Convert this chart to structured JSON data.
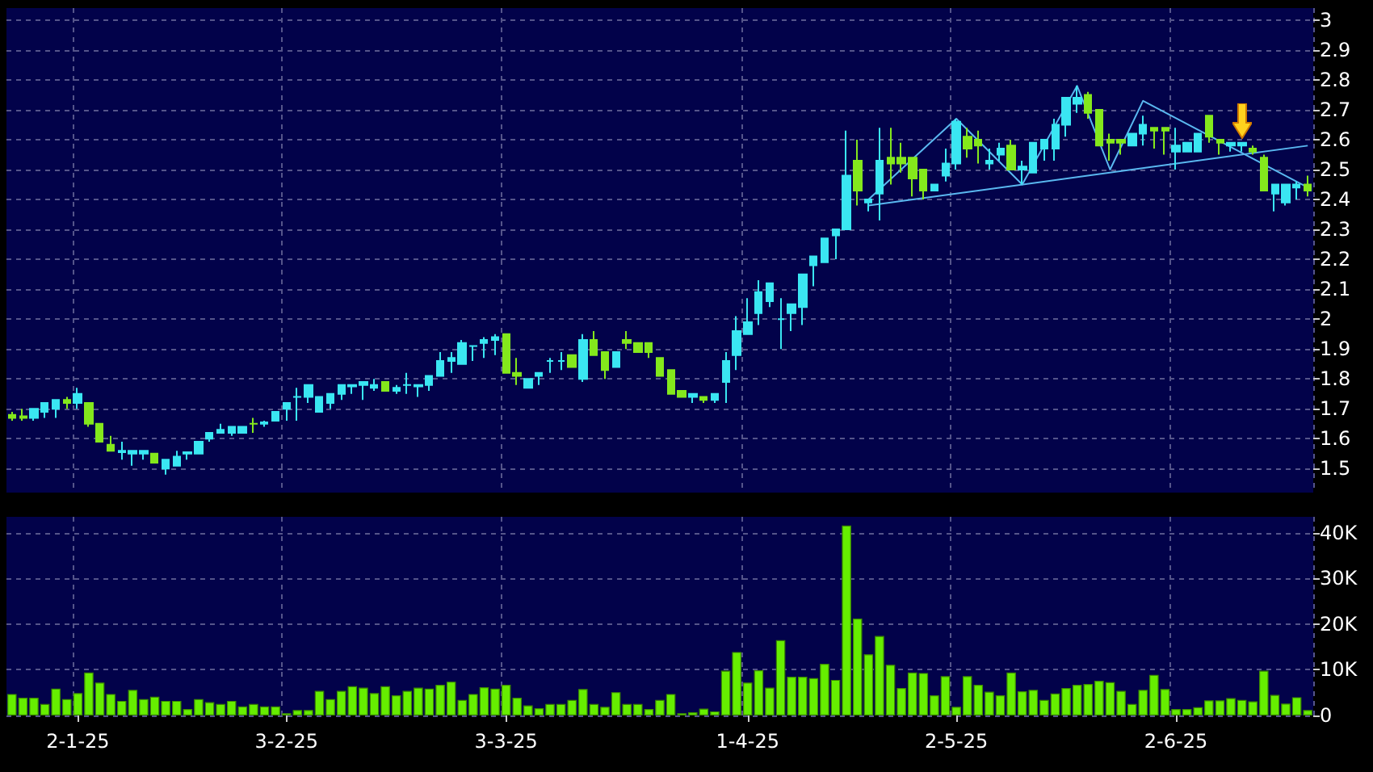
{
  "chart_data": [
    {
      "type": "candlestick",
      "tick_labels": "y",
      "grid": true,
      "categories": [
        null,
        null,
        null,
        null,
        null,
        null,
        null,
        null,
        null,
        null,
        null,
        null,
        null,
        null,
        null,
        null,
        null,
        null,
        null,
        null,
        null,
        null,
        null,
        null,
        null,
        null,
        null,
        null,
        null,
        null,
        null,
        null,
        null,
        null,
        null,
        null,
        null,
        null,
        null,
        null,
        null,
        null,
        null,
        null,
        null,
        null,
        null,
        null,
        null,
        null,
        null,
        null,
        null,
        null,
        null,
        null,
        null,
        null,
        null,
        null,
        null,
        null,
        null,
        null,
        null,
        null,
        null,
        null,
        null,
        null,
        null,
        null,
        null,
        null,
        null,
        null,
        null,
        null,
        null,
        null,
        null,
        null,
        null,
        null,
        null,
        null,
        null,
        null,
        null,
        null,
        null,
        null,
        null,
        null,
        null,
        null,
        null,
        null,
        null,
        null,
        null,
        null,
        null,
        null,
        null,
        null,
        null,
        null,
        null,
        null,
        null,
        null,
        null,
        null,
        null,
        null,
        null,
        null,
        null
      ],
      "ohlc": [
        [
          1.68,
          1.69,
          1.66,
          1.67
        ],
        [
          1.675,
          1.7,
          1.66,
          1.67
        ],
        [
          1.67,
          1.7,
          1.66,
          1.7
        ],
        [
          1.69,
          1.72,
          1.67,
          1.72
        ],
        [
          1.7,
          1.73,
          1.67,
          1.73
        ],
        [
          1.73,
          1.74,
          1.7,
          1.72
        ],
        [
          1.72,
          1.77,
          1.7,
          1.75
        ],
        [
          1.72,
          1.72,
          1.64,
          1.65
        ],
        [
          1.65,
          1.65,
          1.59,
          1.59
        ],
        [
          1.58,
          1.61,
          1.56,
          1.56
        ],
        [
          1.555,
          1.59,
          1.53,
          1.56
        ],
        [
          1.55,
          1.56,
          1.51,
          1.56
        ],
        [
          1.55,
          1.56,
          1.53,
          1.56
        ],
        [
          1.55,
          1.55,
          1.52,
          1.52
        ],
        [
          1.5,
          1.53,
          1.48,
          1.53
        ],
        [
          1.51,
          1.56,
          1.51,
          1.54
        ],
        [
          1.55,
          1.555,
          1.53,
          1.555
        ],
        [
          1.55,
          1.59,
          1.55,
          1.59
        ],
        [
          1.6,
          1.62,
          1.59,
          1.62
        ],
        [
          1.62,
          1.65,
          1.62,
          1.63
        ],
        [
          1.62,
          1.64,
          1.61,
          1.64
        ],
        [
          1.62,
          1.64,
          1.62,
          1.64
        ],
        [
          1.65,
          1.67,
          1.62,
          1.65
        ],
        [
          1.65,
          1.66,
          1.64,
          1.655
        ],
        [
          1.66,
          1.69,
          1.66,
          1.69
        ],
        [
          1.7,
          1.72,
          1.66,
          1.72
        ],
        [
          1.74,
          1.77,
          1.66,
          1.74
        ],
        [
          1.74,
          1.78,
          1.72,
          1.78
        ],
        [
          1.69,
          1.74,
          1.69,
          1.74
        ],
        [
          1.72,
          1.75,
          1.7,
          1.75
        ],
        [
          1.75,
          1.78,
          1.73,
          1.78
        ],
        [
          1.775,
          1.78,
          1.75,
          1.78
        ],
        [
          1.78,
          1.79,
          1.73,
          1.79
        ],
        [
          1.77,
          1.8,
          1.76,
          1.78
        ],
        [
          1.79,
          1.79,
          1.76,
          1.76
        ],
        [
          1.76,
          1.78,
          1.75,
          1.77
        ],
        [
          1.78,
          1.82,
          1.75,
          1.78
        ],
        [
          1.775,
          1.78,
          1.74,
          1.78
        ],
        [
          1.78,
          1.81,
          1.76,
          1.81
        ],
        [
          1.81,
          1.89,
          1.81,
          1.86
        ],
        [
          1.86,
          1.89,
          1.82,
          1.87
        ],
        [
          1.85,
          1.93,
          1.85,
          1.92
        ],
        [
          1.91,
          1.91,
          1.86,
          1.91
        ],
        [
          1.92,
          1.94,
          1.87,
          1.93
        ],
        [
          1.93,
          1.95,
          1.88,
          1.94
        ],
        [
          1.95,
          1.95,
          1.82,
          1.82
        ],
        [
          1.82,
          1.87,
          1.78,
          1.81
        ],
        [
          1.77,
          1.8,
          1.77,
          1.8
        ],
        [
          1.81,
          1.82,
          1.78,
          1.82
        ],
        [
          1.86,
          1.87,
          1.82,
          1.86
        ],
        [
          1.86,
          1.89,
          1.83,
          1.86
        ],
        [
          1.88,
          1.88,
          1.84,
          1.84
        ],
        [
          1.8,
          1.95,
          1.79,
          1.93
        ],
        [
          1.93,
          1.96,
          1.88,
          1.88
        ],
        [
          1.89,
          1.89,
          1.8,
          1.83
        ],
        [
          1.84,
          1.89,
          1.84,
          1.89
        ],
        [
          1.93,
          1.96,
          1.9,
          1.92
        ],
        [
          1.92,
          1.92,
          1.89,
          1.89
        ],
        [
          1.92,
          1.92,
          1.87,
          1.89
        ],
        [
          1.87,
          1.87,
          1.81,
          1.81
        ],
        [
          1.83,
          1.83,
          1.75,
          1.75
        ],
        [
          1.76,
          1.76,
          1.74,
          1.74
        ],
        [
          1.74,
          1.75,
          1.72,
          1.75
        ],
        [
          1.74,
          1.74,
          1.72,
          1.73
        ],
        [
          1.73,
          1.75,
          1.72,
          1.75
        ],
        [
          1.79,
          1.89,
          1.72,
          1.86
        ],
        [
          1.88,
          2.01,
          1.83,
          1.96
        ],
        [
          1.95,
          2.07,
          1.95,
          1.99
        ],
        [
          2.02,
          2.13,
          1.98,
          2.09
        ],
        [
          2.06,
          2.12,
          2.04,
          2.12
        ],
        [
          2.0,
          2.07,
          1.9,
          2.0
        ],
        [
          2.02,
          2.05,
          1.96,
          2.05
        ],
        [
          2.04,
          2.15,
          1.98,
          2.15
        ],
        [
          2.18,
          2.21,
          2.11,
          2.21
        ],
        [
          2.19,
          2.27,
          2.19,
          2.27
        ],
        [
          2.28,
          2.3,
          2.2,
          2.3
        ],
        [
          2.3,
          2.63,
          2.3,
          2.48
        ],
        [
          2.53,
          2.6,
          2.38,
          2.43
        ],
        [
          2.39,
          2.4,
          2.36,
          2.4
        ],
        [
          2.42,
          2.64,
          2.33,
          2.53
        ],
        [
          2.54,
          2.64,
          2.45,
          2.52
        ],
        [
          2.54,
          2.59,
          2.49,
          2.52
        ],
        [
          2.54,
          2.54,
          2.41,
          2.47
        ],
        [
          2.5,
          2.5,
          2.4,
          2.43
        ],
        [
          2.43,
          2.45,
          2.43,
          2.45
        ],
        [
          2.48,
          2.57,
          2.46,
          2.52
        ],
        [
          2.52,
          2.67,
          2.5,
          2.66
        ],
        [
          2.61,
          2.64,
          2.54,
          2.57
        ],
        [
          2.6,
          2.63,
          2.52,
          2.58
        ],
        [
          2.52,
          2.57,
          2.5,
          2.53
        ],
        [
          2.55,
          2.59,
          2.53,
          2.57
        ],
        [
          2.58,
          2.6,
          2.5,
          2.5
        ],
        [
          2.5,
          2.53,
          2.45,
          2.51
        ],
        [
          2.49,
          2.59,
          2.49,
          2.59
        ],
        [
          2.57,
          2.6,
          2.53,
          2.6
        ],
        [
          2.57,
          2.67,
          2.53,
          2.65
        ],
        [
          2.65,
          2.74,
          2.61,
          2.74
        ],
        [
          2.72,
          2.78,
          2.69,
          2.74
        ],
        [
          2.75,
          2.76,
          2.67,
          2.69
        ],
        [
          2.7,
          2.7,
          2.58,
          2.58
        ],
        [
          2.6,
          2.62,
          2.53,
          2.59
        ],
        [
          2.6,
          2.6,
          2.55,
          2.59
        ],
        [
          2.58,
          2.62,
          2.58,
          2.62
        ],
        [
          2.62,
          2.68,
          2.58,
          2.65
        ],
        [
          2.64,
          2.64,
          2.57,
          2.63
        ],
        [
          2.64,
          2.64,
          2.55,
          2.63
        ],
        [
          2.56,
          2.64,
          2.5,
          2.58
        ],
        [
          2.56,
          2.59,
          2.56,
          2.59
        ],
        [
          2.56,
          2.62,
          2.56,
          2.62
        ],
        [
          2.68,
          2.68,
          2.59,
          2.61
        ],
        [
          2.6,
          2.6,
          2.55,
          2.59
        ],
        [
          2.58,
          2.59,
          2.56,
          2.59
        ],
        [
          2.58,
          2.59,
          2.56,
          2.59
        ],
        [
          2.57,
          2.58,
          2.55,
          2.56
        ],
        [
          2.54,
          2.55,
          2.43,
          2.43
        ],
        [
          2.42,
          2.45,
          2.36,
          2.45
        ],
        [
          2.39,
          2.45,
          2.38,
          2.45
        ],
        [
          2.44,
          2.46,
          2.4,
          2.45
        ],
        [
          2.45,
          2.48,
          2.41,
          2.43
        ]
      ],
      "colors": [
        "#84e81c",
        "#84e81c",
        "#3ae6f2",
        "#3ae6f2",
        "#3ae6f2",
        "#84e81c",
        "#3ae6f2",
        "#84e81c",
        "#84e81c",
        "#84e81c",
        "#3ae6f2",
        "#3ae6f2",
        "#3ae6f2",
        "#84e81c",
        "#3ae6f2",
        "#3ae6f2",
        "#3ae6f2",
        "#3ae6f2",
        "#3ae6f2",
        "#3ae6f2",
        "#3ae6f2",
        "#3ae6f2",
        "#84e81c",
        "#3ae6f2",
        "#3ae6f2",
        "#3ae6f2",
        "#3ae6f2",
        "#3ae6f2",
        "#3ae6f2",
        "#3ae6f2",
        "#3ae6f2",
        "#3ae6f2",
        "#3ae6f2",
        "#3ae6f2",
        "#84e81c",
        "#3ae6f2",
        "#3ae6f2",
        "#3ae6f2",
        "#3ae6f2",
        "#3ae6f2",
        "#3ae6f2",
        "#3ae6f2",
        "#3ae6f2",
        "#3ae6f2",
        "#3ae6f2",
        "#84e81c",
        "#84e81c",
        "#3ae6f2",
        "#3ae6f2",
        "#3ae6f2",
        "#3ae6f2",
        "#84e81c",
        "#3ae6f2",
        "#84e81c",
        "#84e81c",
        "#3ae6f2",
        "#84e81c",
        "#84e81c",
        "#84e81c",
        "#84e81c",
        "#84e81c",
        "#84e81c",
        "#3ae6f2",
        "#84e81c",
        "#3ae6f2",
        "#3ae6f2",
        "#3ae6f2",
        "#3ae6f2",
        "#3ae6f2",
        "#3ae6f2",
        "#3ae6f2",
        "#3ae6f2",
        "#3ae6f2",
        "#3ae6f2",
        "#3ae6f2",
        "#3ae6f2",
        "#3ae6f2",
        "#84e81c",
        "#3ae6f2",
        "#3ae6f2",
        "#84e81c",
        "#84e81c",
        "#84e81c",
        "#84e81c",
        "#3ae6f2",
        "#3ae6f2",
        "#3ae6f2",
        "#84e81c",
        "#84e81c",
        "#3ae6f2",
        "#3ae6f2",
        "#84e81c",
        "#3ae6f2",
        "#3ae6f2",
        "#3ae6f2",
        "#3ae6f2",
        "#3ae6f2",
        "#3ae6f2",
        "#84e81c",
        "#84e81c",
        "#84e81c",
        "#84e81c",
        "#3ae6f2",
        "#3ae6f2",
        "#84e81c",
        "#84e81c",
        "#3ae6f2",
        "#3ae6f2",
        "#3ae6f2",
        "#84e81c",
        "#84e81c",
        "#3ae6f2",
        "#3ae6f2",
        "#84e81c",
        "#84e81c",
        "#3ae6f2",
        "#3ae6f2",
        "#3ae6f2",
        "#84e81c"
      ],
      "series": [
        {
          "type": "line",
          "color": "#5ab8f0",
          "values": [
            null,
            null,
            null,
            null,
            null,
            null,
            null,
            null,
            null,
            null,
            null,
            null,
            null,
            null,
            null,
            null,
            null,
            null,
            null,
            null,
            null,
            null,
            null,
            null,
            null,
            null,
            null,
            null,
            null,
            null,
            null,
            null,
            null,
            null,
            null,
            null,
            null,
            null,
            null,
            null,
            null,
            null,
            null,
            null,
            null,
            null,
            null,
            null,
            null,
            null,
            null,
            null,
            null,
            null,
            null,
            null,
            null,
            null,
            null,
            null,
            null,
            null,
            null,
            null,
            null,
            null,
            null,
            null,
            null,
            null,
            null,
            null,
            null,
            null,
            null,
            null,
            null,
            null,
            2.4,
            null,
            null,
            null,
            null,
            null,
            null,
            null,
            2.67,
            null,
            null,
            null,
            null,
            null,
            2.45,
            null,
            null,
            null,
            null,
            2.78,
            null,
            null,
            2.5,
            null,
            null,
            2.73,
            null,
            null,
            null,
            null,
            null,
            null,
            null,
            null,
            null,
            null,
            null,
            null,
            null,
            null,
            2.44
          ]
        },
        {
          "type": "line",
          "color": "#5ab8f0",
          "values": [
            null,
            null,
            null,
            null,
            null,
            null,
            null,
            null,
            null,
            null,
            null,
            null,
            null,
            null,
            null,
            null,
            null,
            null,
            null,
            null,
            null,
            null,
            null,
            null,
            null,
            null,
            null,
            null,
            null,
            null,
            null,
            null,
            null,
            null,
            null,
            null,
            null,
            null,
            null,
            null,
            null,
            null,
            null,
            null,
            null,
            null,
            null,
            null,
            null,
            null,
            null,
            null,
            null,
            null,
            null,
            null,
            null,
            null,
            null,
            null,
            null,
            null,
            null,
            null,
            null,
            null,
            null,
            null,
            null,
            null,
            null,
            null,
            null,
            null,
            null,
            null,
            null,
            null,
            2.38,
            null,
            null,
            null,
            null,
            null,
            null,
            null,
            null,
            null,
            null,
            null,
            null,
            null,
            null,
            null,
            null,
            null,
            null,
            null,
            null,
            null,
            null,
            null,
            null,
            null,
            null,
            null,
            null,
            null,
            null,
            null,
            null,
            null,
            null,
            null,
            null,
            null,
            null,
            null,
            2.58
          ]
        }
      ],
      "ylim": [
        1.42,
        3.04
      ],
      "yticks": [
        1.5,
        1.6,
        1.7,
        1.8,
        1.9,
        2,
        2.1,
        2.2,
        2.3,
        2.4,
        2.5,
        2.6,
        2.7,
        2.8,
        2.9,
        3
      ]
    },
    {
      "type": "bar",
      "grid": true,
      "color": "#66ee00",
      "categories": [
        null,
        null,
        null,
        null,
        null,
        null,
        "2-1-25",
        null,
        null,
        null,
        null,
        null,
        null,
        null,
        null,
        null,
        null,
        null,
        null,
        null,
        null,
        null,
        null,
        null,
        null,
        "3-2-25",
        null,
        null,
        null,
        null,
        null,
        null,
        null,
        null,
        null,
        null,
        null,
        null,
        null,
        null,
        null,
        null,
        null,
        null,
        null,
        "3-3-25",
        null,
        null,
        null,
        null,
        null,
        null,
        null,
        null,
        null,
        null,
        null,
        null,
        null,
        null,
        null,
        null,
        null,
        null,
        null,
        null,
        null,
        "1-4-25",
        null,
        null,
        null,
        null,
        null,
        null,
        null,
        null,
        null,
        null,
        null,
        null,
        null,
        null,
        null,
        null,
        null,
        null,
        "2-5-25",
        null,
        null,
        null,
        null,
        null,
        null,
        null,
        null,
        null,
        null,
        null,
        null,
        null,
        null,
        null,
        null,
        null,
        null,
        null,
        "2-6-25",
        null,
        null,
        null,
        null,
        null,
        null,
        null,
        null,
        null,
        null,
        null,
        null
      ],
      "values": [
        4700,
        3900,
        3900,
        2500,
        5900,
        3600,
        4900,
        9400,
        7200,
        4700,
        3200,
        5600,
        3600,
        4100,
        3200,
        3200,
        1400,
        3600,
        2900,
        2500,
        3200,
        2000,
        2500,
        2000,
        2000,
        500,
        1200,
        1200,
        5400,
        3600,
        5400,
        6400,
        6100,
        4900,
        6400,
        4400,
        5400,
        6100,
        5900,
        6700,
        7400,
        3400,
        4700,
        6200,
        5900,
        6700,
        3900,
        2200,
        1600,
        2500,
        2500,
        3400,
        5800,
        2500,
        1900,
        5100,
        2500,
        2500,
        1400,
        3400,
        4700,
        500,
        700,
        1500,
        900,
        9800,
        13900,
        7200,
        9900,
        6100,
        16500,
        8500,
        8500,
        8200,
        11300,
        7800,
        41600,
        21200,
        13400,
        17400,
        11100,
        6000,
        9400,
        9300,
        4400,
        8600,
        1900,
        8600,
        6700,
        5200,
        4400,
        9400,
        5300,
        5600,
        3400,
        4800,
        6000,
        6700,
        6900,
        7600,
        7300,
        5400,
        2500,
        5600,
        8900,
        5800,
        1400,
        1400,
        1800,
        3300,
        3300,
        3800,
        3400,
        3100,
        9800,
        4500,
        2600,
        4000,
        1200
      ],
      "ylim": [
        0,
        43500
      ],
      "yticks": [
        0,
        {
          "value": 10000,
          "label": "10K"
        },
        {
          "value": 20000,
          "label": "20K"
        },
        {
          "value": 30000,
          "label": "30K"
        },
        {
          "value": 40000,
          "label": "40K"
        }
      ]
    }
  ]
}
